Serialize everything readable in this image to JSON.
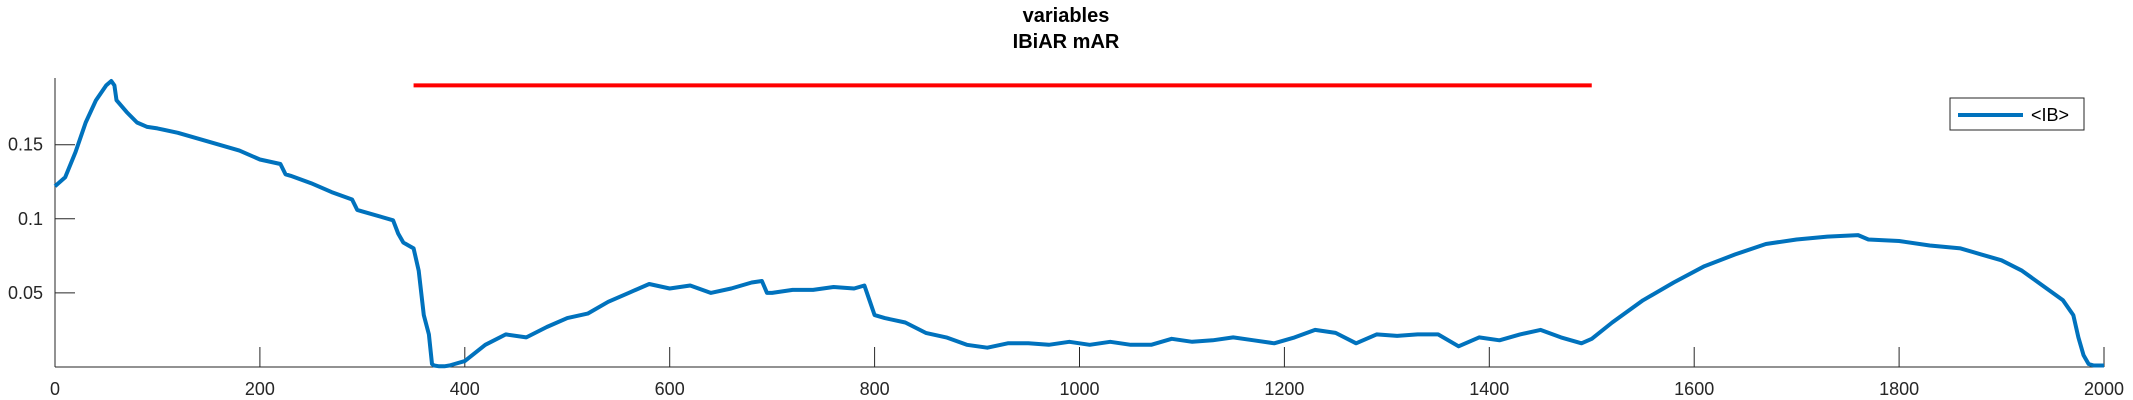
{
  "chart_data": {
    "type": "line",
    "title": [
      "variables",
      "IBiAR mAR"
    ],
    "xlabel": "",
    "ylabel": "",
    "xlim": [
      0,
      2000
    ],
    "ylim": [
      0,
      0.195
    ],
    "x_ticks": [
      "0",
      "200",
      "400",
      "600",
      "800",
      "1000",
      "1200",
      "1400",
      "1600",
      "1800",
      "2000"
    ],
    "y_ticks": [
      "0.05",
      "0.1",
      "0.15"
    ],
    "grid": false,
    "legend_position": "top-right",
    "colors": {
      "series": "#0072BD",
      "marker": "#FF0000",
      "axis": "#262626"
    },
    "reference_segment": {
      "x": [
        350,
        1500
      ],
      "y": 0.19
    },
    "series": [
      {
        "name": "<IB>",
        "x": [
          0,
          10,
          20,
          30,
          40,
          50,
          55,
          58,
          60,
          70,
          80,
          90,
          100,
          120,
          150,
          180,
          200,
          220,
          225,
          230,
          250,
          270,
          290,
          295,
          300,
          330,
          335,
          340,
          345,
          350,
          355,
          360,
          365,
          368,
          370,
          375,
          380,
          385,
          390,
          400,
          420,
          440,
          460,
          480,
          500,
          520,
          540,
          560,
          580,
          600,
          620,
          640,
          660,
          680,
          690,
          695,
          700,
          720,
          740,
          760,
          780,
          790,
          795,
          800,
          810,
          830,
          850,
          870,
          890,
          910,
          930,
          950,
          970,
          990,
          1010,
          1030,
          1050,
          1070,
          1090,
          1110,
          1130,
          1150,
          1170,
          1190,
          1210,
          1230,
          1250,
          1270,
          1290,
          1310,
          1330,
          1350,
          1370,
          1390,
          1410,
          1430,
          1450,
          1470,
          1490,
          1500,
          1520,
          1550,
          1580,
          1610,
          1640,
          1670,
          1700,
          1730,
          1760,
          1770,
          1800,
          1830,
          1860,
          1880,
          1900,
          1920,
          1940,
          1960,
          1970,
          1975,
          1980,
          1985,
          1990,
          2000
        ],
        "values": [
          0.122,
          0.128,
          0.145,
          0.165,
          0.18,
          0.19,
          0.193,
          0.19,
          0.18,
          0.172,
          0.165,
          0.162,
          0.161,
          0.158,
          0.152,
          0.146,
          0.14,
          0.137,
          0.13,
          0.129,
          0.124,
          0.118,
          0.113,
          0.106,
          0.105,
          0.099,
          0.09,
          0.084,
          0.082,
          0.08,
          0.065,
          0.035,
          0.022,
          0.002,
          0.001,
          0.0005,
          0.0005,
          0.001,
          0.002,
          0.004,
          0.015,
          0.022,
          0.02,
          0.027,
          0.033,
          0.036,
          0.044,
          0.05,
          0.056,
          0.053,
          0.055,
          0.05,
          0.053,
          0.057,
          0.058,
          0.05,
          0.05,
          0.052,
          0.052,
          0.054,
          0.053,
          0.055,
          0.045,
          0.035,
          0.033,
          0.03,
          0.023,
          0.02,
          0.015,
          0.013,
          0.016,
          0.016,
          0.015,
          0.017,
          0.015,
          0.017,
          0.015,
          0.015,
          0.019,
          0.017,
          0.018,
          0.02,
          0.018,
          0.016,
          0.02,
          0.025,
          0.023,
          0.016,
          0.022,
          0.021,
          0.022,
          0.022,
          0.014,
          0.02,
          0.018,
          0.022,
          0.025,
          0.02,
          0.016,
          0.019,
          0.03,
          0.045,
          0.057,
          0.068,
          0.076,
          0.083,
          0.086,
          0.088,
          0.089,
          0.086,
          0.085,
          0.082,
          0.08,
          0.076,
          0.072,
          0.065,
          0.055,
          0.045,
          0.035,
          0.02,
          0.008,
          0.002,
          0.001,
          0.001
        ]
      }
    ]
  }
}
